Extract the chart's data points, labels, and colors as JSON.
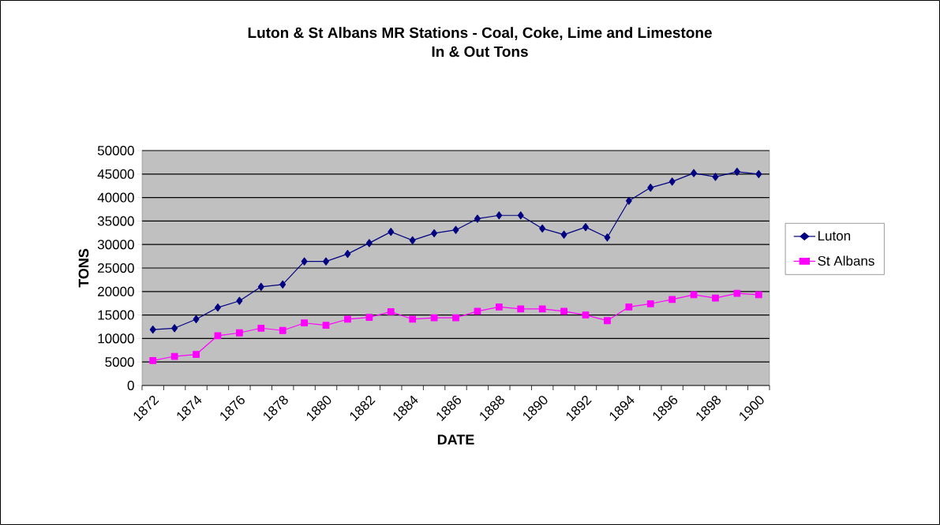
{
  "chart_data": {
    "type": "line",
    "title": "Luton & St Albans MR Stations - Coal, Coke, Lime and Limestone\nIn & Out Tons",
    "xlabel": "DATE",
    "ylabel": "TONS",
    "categories": [
      "1872",
      null,
      "1874",
      null,
      "1876",
      null,
      "1878",
      null,
      "1880",
      null,
      "1882",
      null,
      "1884",
      null,
      "1886",
      null,
      "1888",
      null,
      "1890",
      null,
      "1892",
      null,
      "1894",
      null,
      "1896",
      null,
      "1898",
      null,
      "1900"
    ],
    "series": [
      {
        "name": "Luton",
        "color": "#000080",
        "marker": "diamond",
        "values": [
          11900,
          12200,
          14100,
          16600,
          18000,
          21000,
          21500,
          26400,
          26400,
          28000,
          30300,
          32700,
          30900,
          32400,
          33100,
          35500,
          36200,
          36200,
          33400,
          32100,
          33700,
          31500,
          39300,
          42100,
          43400,
          45200,
          44400,
          45500,
          45000
        ]
      },
      {
        "name": "St Albans",
        "color": "#ff00ff",
        "marker": "square",
        "values": [
          5300,
          6200,
          6600,
          10600,
          11200,
          12200,
          11700,
          13300,
          12800,
          14100,
          14500,
          15700,
          14100,
          14400,
          14400,
          15800,
          16700,
          16300,
          16300,
          15800,
          15000,
          13800,
          16700,
          17400,
          18300,
          19300,
          18600,
          19600,
          19300
        ]
      }
    ],
    "ylim": [
      0,
      50000
    ],
    "yticks": [
      0,
      5000,
      10000,
      15000,
      20000,
      25000,
      30000,
      35000,
      40000,
      45000,
      50000
    ],
    "grid": "y",
    "legend": "right",
    "line_style": "solid"
  }
}
